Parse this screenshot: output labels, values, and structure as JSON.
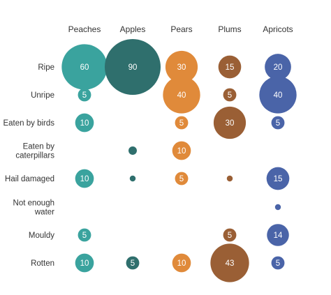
{
  "chart_data": {
    "type": "bubble-matrix",
    "title": "",
    "columns": [
      "Peaches",
      "Apples",
      "Pears",
      "Plums",
      "Apricots"
    ],
    "rows": [
      [
        "Ripe"
      ],
      [
        "Unripe"
      ],
      [
        "Eaten by birds"
      ],
      [
        "Eaten by",
        "caterpillars"
      ],
      [
        "Hail damaged"
      ],
      [
        "Not enough",
        "water"
      ],
      [
        "Mouldy"
      ],
      [
        "Rotten"
      ]
    ],
    "colors": [
      "#3aa39e",
      "#2f6f6d",
      "#e08a3a",
      "#9a5f35",
      "#4a64a8"
    ],
    "values": [
      [
        60,
        90,
        30,
        15,
        20
      ],
      [
        5,
        null,
        40,
        5,
        40
      ],
      [
        10,
        null,
        5,
        30,
        5
      ],
      [
        null,
        2,
        10,
        null,
        null
      ],
      [
        10,
        1,
        5,
        1,
        15
      ],
      [
        null,
        null,
        null,
        null,
        1
      ],
      [
        5,
        null,
        null,
        5,
        14
      ],
      [
        10,
        5,
        10,
        43,
        5
      ]
    ],
    "value_labels": [
      [
        "60",
        "90",
        "30",
        "15",
        "20"
      ],
      [
        "5",
        "",
        "40",
        "5",
        "40"
      ],
      [
        "10",
        "",
        "5",
        "30",
        "5"
      ],
      [
        "",
        "",
        "10",
        "",
        ""
      ],
      [
        "10",
        "",
        "5",
        "",
        "15"
      ],
      [
        "",
        "",
        "",
        "",
        ""
      ],
      [
        "5",
        "",
        "",
        "5",
        "14"
      ],
      [
        "10",
        "5",
        "10",
        "43",
        "5"
      ]
    ],
    "max_value": 90
  }
}
